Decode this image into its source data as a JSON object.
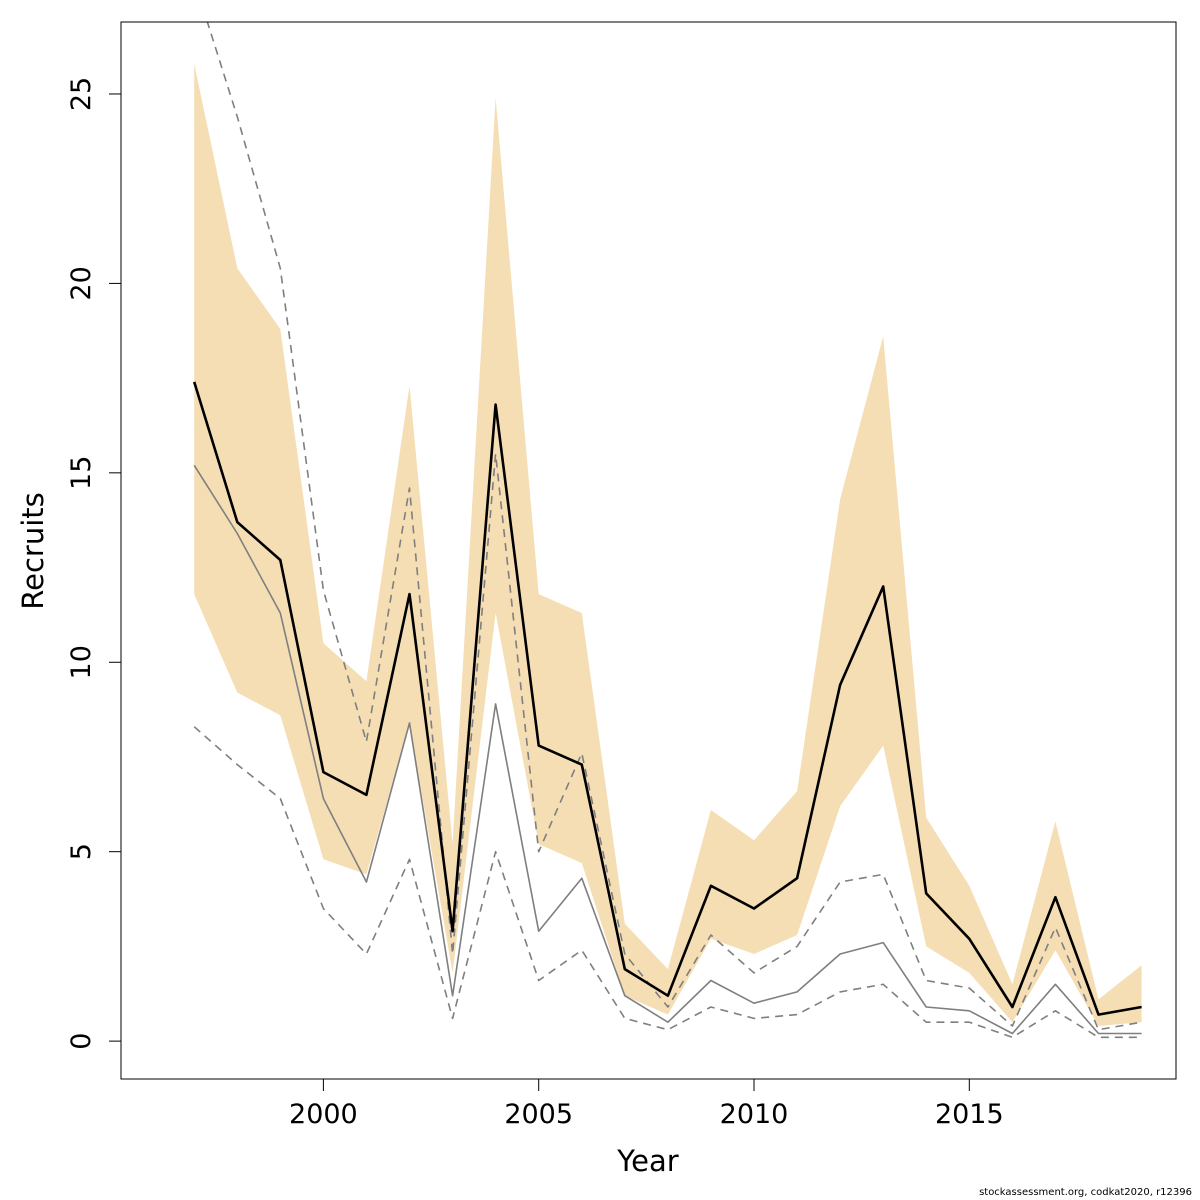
{
  "chart_data": {
    "type": "line",
    "xlabel": "Year",
    "ylabel": "Recruits",
    "xlim": [
      1995.3,
      2019.8
    ],
    "ylim": [
      -1.0,
      26.9
    ],
    "xticks": [
      2000,
      2005,
      2010,
      2015
    ],
    "yticks": [
      0,
      5,
      10,
      15,
      20,
      25
    ],
    "grid": false,
    "x": [
      1997,
      1998,
      1999,
      2000,
      2001,
      2002,
      2003,
      2004,
      2005,
      2006,
      2007,
      2008,
      2009,
      2010,
      2011,
      2012,
      2013,
      2014,
      2015,
      2016,
      2017,
      2018,
      2019
    ],
    "band": {
      "color": "#f5deb3",
      "upper": [
        25.8,
        20.4,
        18.8,
        10.5,
        9.5,
        17.3,
        5.2,
        24.9,
        11.8,
        11.3,
        3.1,
        1.9,
        6.1,
        5.3,
        6.6,
        14.3,
        18.6,
        5.9,
        4.1,
        1.5,
        5.8,
        1.1,
        2.0
      ],
      "lower": [
        11.8,
        9.2,
        8.6,
        4.8,
        4.4,
        8.4,
        1.8,
        11.3,
        5.2,
        4.7,
        1.2,
        0.7,
        2.7,
        2.3,
        2.8,
        6.2,
        7.8,
        2.5,
        1.8,
        0.5,
        2.4,
        0.4,
        0.5
      ]
    },
    "series": [
      {
        "style": "solid-black",
        "color": "#000000",
        "values": [
          17.4,
          13.7,
          12.7,
          7.1,
          6.5,
          11.8,
          2.9,
          16.8,
          7.8,
          7.3,
          1.9,
          1.2,
          4.1,
          3.5,
          4.3,
          9.4,
          12.0,
          3.9,
          2.7,
          0.9,
          3.8,
          0.7,
          0.9
        ]
      },
      {
        "style": "solid-grey",
        "color": "#7f7f7f",
        "values": [
          15.2,
          13.4,
          11.3,
          6.4,
          4.2,
          8.4,
          1.2,
          8.9,
          2.9,
          4.3,
          1.2,
          0.5,
          1.6,
          1.0,
          1.3,
          2.3,
          2.6,
          0.9,
          0.8,
          0.2,
          1.5,
          0.2,
          0.2
        ]
      },
      {
        "style": "dashed-grey",
        "color": "#7f7f7f",
        "values": [
          28.0,
          24.4,
          20.4,
          11.9,
          7.9,
          14.6,
          2.3,
          15.5,
          5.0,
          7.6,
          2.3,
          0.9,
          2.8,
          1.8,
          2.5,
          4.2,
          4.4,
          1.6,
          1.4,
          0.4,
          3.0,
          0.3,
          0.5
        ]
      },
      {
        "style": "dashed-grey",
        "color": "#7f7f7f",
        "values": [
          8.3,
          7.3,
          6.4,
          3.5,
          2.3,
          4.8,
          0.6,
          5.0,
          1.6,
          2.4,
          0.6,
          0.3,
          0.9,
          0.6,
          0.7,
          1.3,
          1.5,
          0.5,
          0.5,
          0.1,
          0.8,
          0.1,
          0.1
        ]
      }
    ]
  },
  "footer": {
    "text": "stockassessment.org, codkat2020, r12396"
  }
}
